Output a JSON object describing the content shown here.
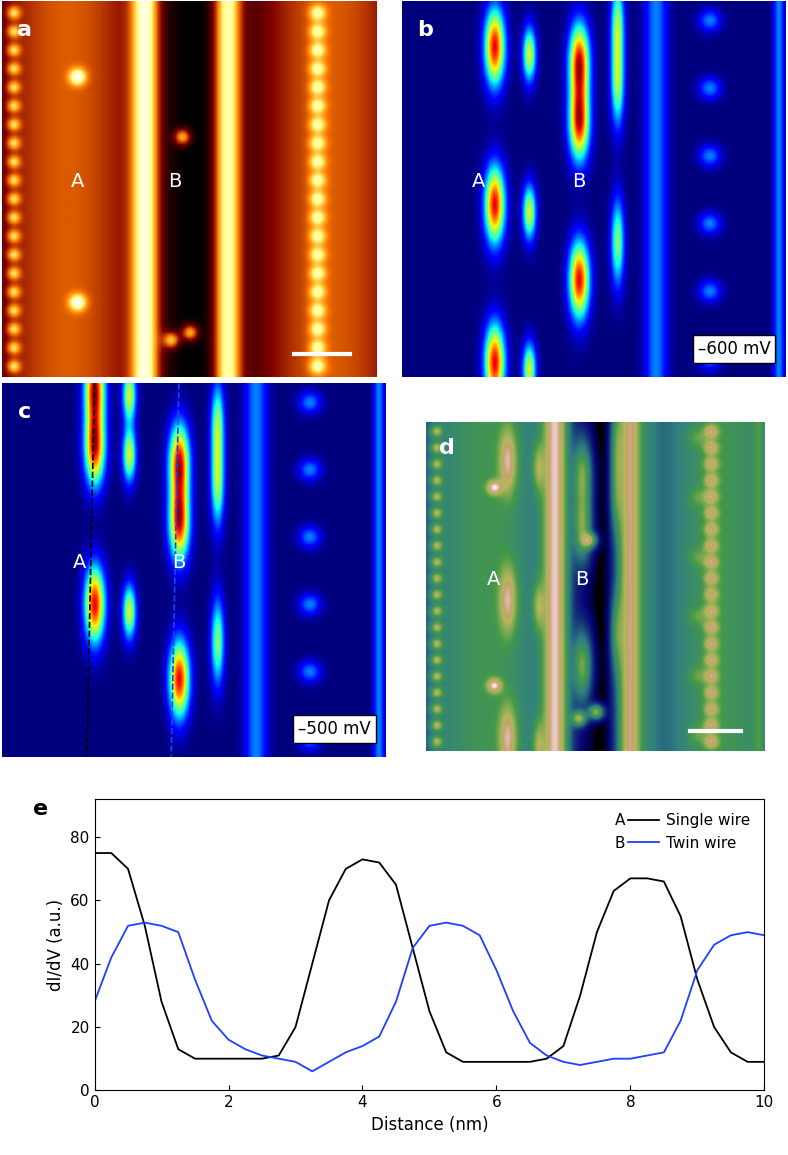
{
  "panels": [
    {
      "label": "a",
      "markers": [
        "A",
        "B"
      ]
    },
    {
      "label": "b",
      "markers": [
        "A",
        "B"
      ],
      "bias": "–600 mV"
    },
    {
      "label": "c",
      "markers": [
        "A",
        "B"
      ],
      "bias": "–500 mV"
    },
    {
      "label": "d",
      "markers": [
        "A",
        "B"
      ]
    }
  ],
  "chart_data": {
    "label": "e",
    "type": "line",
    "x_label": "Distance (nm)",
    "y_label": "dI/dV (a.u.)",
    "x": [
      0,
      0.25,
      0.5,
      0.75,
      1.0,
      1.25,
      1.5,
      1.75,
      2.0,
      2.25,
      2.5,
      2.75,
      3.0,
      3.25,
      3.5,
      3.75,
      4.0,
      4.25,
      4.5,
      4.75,
      5.0,
      5.25,
      5.5,
      5.75,
      6.0,
      6.25,
      6.5,
      6.75,
      7.0,
      7.25,
      7.5,
      7.75,
      8.0,
      8.25,
      8.5,
      8.75,
      9.0,
      9.25,
      9.5,
      9.75,
      10.0
    ],
    "xlim": [
      0,
      10
    ],
    "xticks": [
      0,
      2,
      4,
      6,
      8,
      10
    ],
    "ylim": [
      0,
      92
    ],
    "yticks": [
      0,
      20,
      40,
      60,
      80
    ],
    "legend": "upper right",
    "series": [
      {
        "tag": "A",
        "name": "Single wire",
        "color": "#000000",
        "values": [
          75,
          75,
          70,
          52,
          28,
          13,
          10,
          10,
          10,
          10,
          10,
          11,
          20,
          40,
          60,
          70,
          73,
          72,
          65,
          45,
          25,
          12,
          9,
          9,
          9,
          9,
          9,
          10,
          14,
          30,
          50,
          63,
          67,
          67,
          66,
          55,
          35,
          20,
          12,
          9,
          9
        ]
      },
      {
        "tag": "B",
        "name": "Twin wire",
        "color": "#1f3fff",
        "values": [
          28,
          42,
          52,
          53,
          52,
          50,
          35,
          22,
          16,
          13,
          11,
          10,
          9,
          6,
          9,
          12,
          14,
          17,
          28,
          45,
          52,
          53,
          52,
          49,
          38,
          25,
          15,
          11,
          9,
          8,
          9,
          10,
          10,
          11,
          12,
          22,
          38,
          46,
          49,
          50,
          49
        ]
      }
    ]
  }
}
